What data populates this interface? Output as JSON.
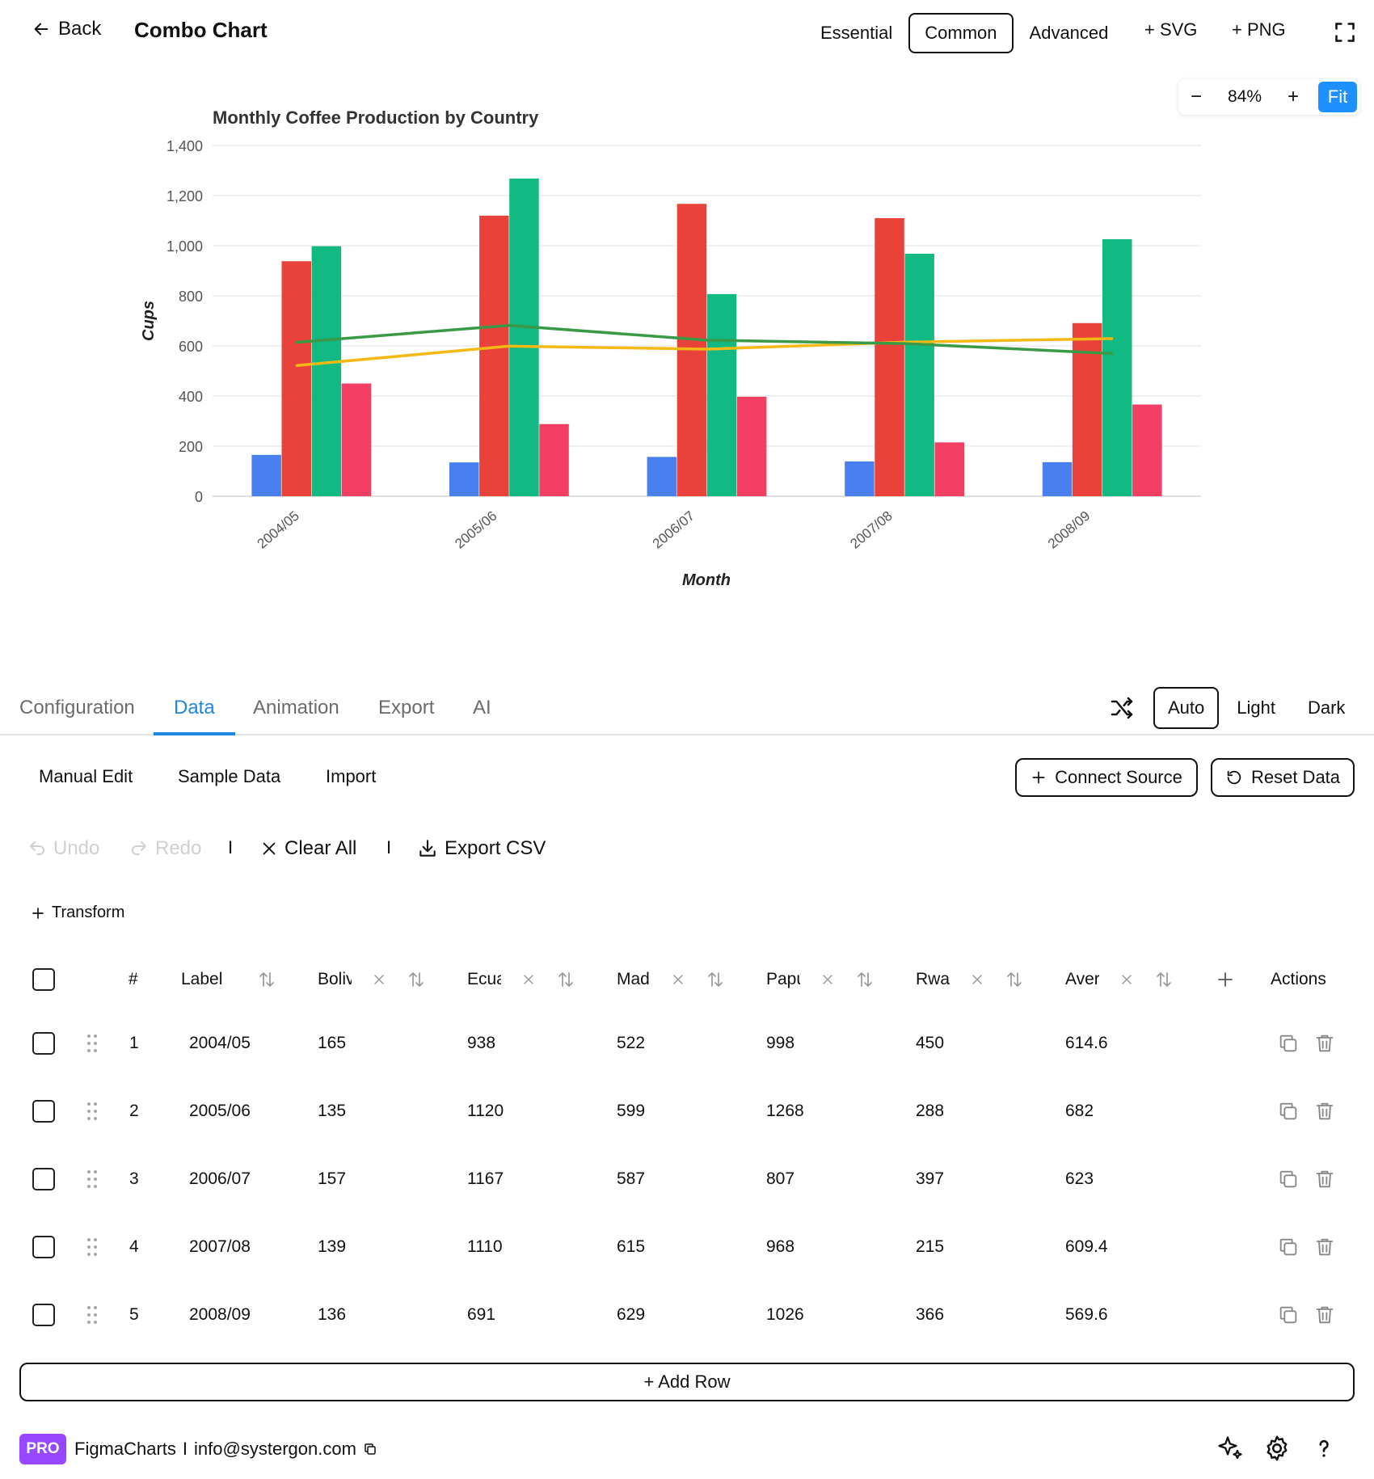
{
  "header": {
    "back_label": "Back",
    "title": "Combo Chart",
    "levels": [
      "Essential",
      "Common",
      "Advanced"
    ],
    "active_level": "Common",
    "svg_label": "+ SVG",
    "png_label": "+ PNG"
  },
  "zoom": {
    "minus": "−",
    "value": "84%",
    "plus": "+",
    "fit": "Fit"
  },
  "chart_data": {
    "type": "combo",
    "title": "Monthly Coffee Production by Country",
    "xlabel": "Month",
    "ylabel": "Cups",
    "ylim": [
      0,
      1400
    ],
    "yticks": [
      "0",
      "200",
      "400",
      "600",
      "800",
      "1,000",
      "1,200",
      "1,400"
    ],
    "categories": [
      "2004/05",
      "2005/06",
      "2006/07",
      "2007/08",
      "2008/09"
    ],
    "bar_series": [
      {
        "values": [
          165,
          135,
          157,
          139,
          136
        ],
        "color": "#4a7ff0"
      },
      {
        "values": [
          938,
          1120,
          1167,
          1110,
          691
        ],
        "color": "#e8423a"
      },
      {
        "values": [
          998,
          1268,
          807,
          968,
          1026
        ],
        "color": "#13b983"
      },
      {
        "values": [
          450,
          288,
          397,
          215,
          366
        ],
        "color": "#f23f63"
      }
    ],
    "line_series": [
      {
        "values": [
          522,
          599,
          587,
          615,
          629
        ],
        "color": "#f5b915"
      },
      {
        "values": [
          614.6,
          682,
          623,
          609.4,
          569.6
        ],
        "color": "#3a9a47"
      }
    ],
    "grid": true
  },
  "tabs": {
    "items": [
      "Configuration",
      "Data",
      "Animation",
      "Export",
      "AI"
    ],
    "active": "Data"
  },
  "theme": {
    "items": [
      "Auto",
      "Light",
      "Dark"
    ],
    "active": "Auto"
  },
  "subtabs": [
    "Manual Edit",
    "Sample Data",
    "Import"
  ],
  "actions": {
    "connect": "Connect Source",
    "reset": "Reset Data"
  },
  "history": {
    "undo": "Undo",
    "redo": "Redo",
    "sep": "I",
    "clear": "Clear All",
    "export_csv": "Export CSV"
  },
  "transform_label": "Transform",
  "table": {
    "headers": {
      "num": "#",
      "label": "Label",
      "actions": "Actions"
    },
    "columns": [
      "Bolivia",
      "Ecuador",
      "Madagascar",
      "Papua New Guinea",
      "Rwanda",
      "Average"
    ],
    "rows": [
      {
        "n": "1",
        "label": "2004/05",
        "vals": [
          "165",
          "938",
          "522",
          "998",
          "450",
          "614.6"
        ]
      },
      {
        "n": "2",
        "label": "2005/06",
        "vals": [
          "135",
          "1120",
          "599",
          "1268",
          "288",
          "682"
        ]
      },
      {
        "n": "3",
        "label": "2006/07",
        "vals": [
          "157",
          "1167",
          "587",
          "807",
          "397",
          "623"
        ]
      },
      {
        "n": "4",
        "label": "2007/08",
        "vals": [
          "139",
          "1110",
          "615",
          "968",
          "215",
          "609.4"
        ]
      },
      {
        "n": "5",
        "label": "2008/09",
        "vals": [
          "136",
          "691",
          "629",
          "1026",
          "366",
          "569.6"
        ]
      }
    ],
    "add_row": "+ Add Row"
  },
  "footer": {
    "pro": "PRO",
    "brand": "FigmaCharts",
    "sep": "I",
    "email": "info@systergon.com"
  }
}
